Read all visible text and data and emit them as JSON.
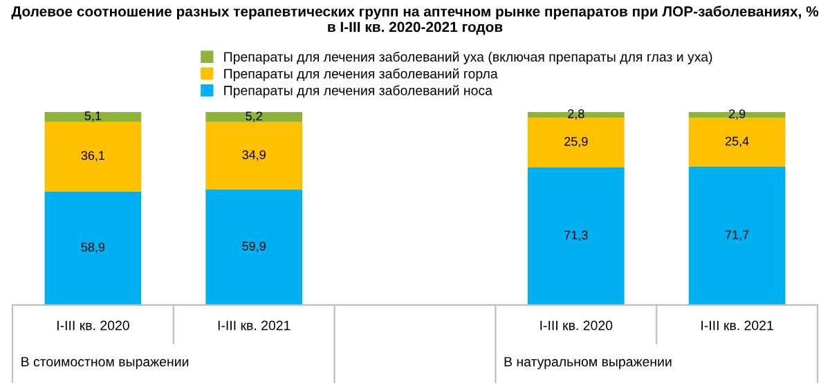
{
  "chart_data": {
    "type": "bar",
    "stacked": true,
    "title": "Долевое соотношение разных терапевтических групп на аптечном рынке препаратов при ЛОР-заболеваниях, %\nв I-III кв. 2020-2021 годов",
    "categories": [
      "I-III кв. 2020",
      "I-III кв. 2021",
      null,
      "I-III кв. 2020",
      "I-III кв. 2021"
    ],
    "series": [
      {
        "name": "Препараты для лечения заболеваний носа",
        "color": "#00b0f0",
        "values": [
          58.9,
          59.9,
          null,
          71.3,
          71.7
        ],
        "value_labels": [
          "58,9",
          "59,9",
          null,
          "71,3",
          "71,7"
        ]
      },
      {
        "name": "Препараты для лечения заболеваний горла",
        "color": "#ffc000",
        "values": [
          36.1,
          34.9,
          null,
          25.9,
          25.4
        ],
        "value_labels": [
          "36,1",
          "34,9",
          null,
          "25,9",
          "25,4"
        ]
      },
      {
        "name": "Препараты для лечения заболеваний уха (включая препараты для глаз и уха)",
        "color": "#8db33a",
        "values": [
          5.1,
          5.2,
          null,
          2.8,
          2.9
        ],
        "value_labels": [
          "5,1",
          "5,2",
          null,
          "2,8",
          "2,9"
        ]
      }
    ],
    "legend": "top",
    "grid": false,
    "annotations": [
      "В стоимостном выражении",
      "В натуральном выражении"
    ]
  }
}
